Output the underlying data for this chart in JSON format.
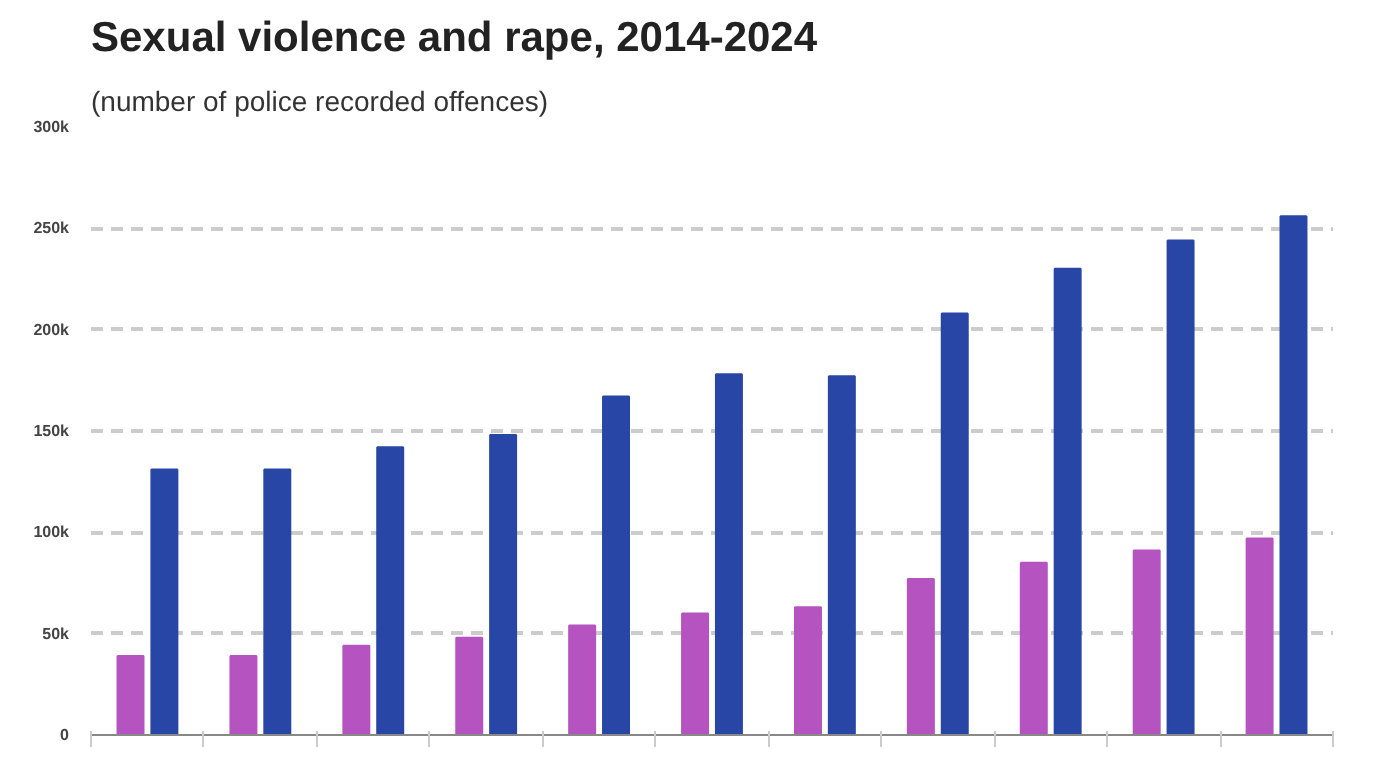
{
  "chart_data": {
    "type": "bar",
    "title": "Sexual violence and rape, 2014-2024",
    "subtitle": "(number of police recorded offences)",
    "categories": [
      null,
      null,
      null,
      null,
      null,
      null,
      null,
      null,
      null,
      null,
      null
    ],
    "series": [
      {
        "color": "#b554c0",
        "values": [
          39000,
          39000,
          44000,
          48000,
          54000,
          60000,
          63000,
          77000,
          85000,
          91000,
          97000
        ]
      },
      {
        "color": "#2846a6",
        "values": [
          131000,
          131000,
          142000,
          148000,
          167000,
          178000,
          177000,
          208000,
          230000,
          244000,
          256000
        ]
      }
    ],
    "ylim": [
      0,
      300000
    ],
    "yticks": [
      {
        "value": 0,
        "label": "0"
      },
      {
        "value": 50000,
        "label": "50k"
      },
      {
        "value": 100000,
        "label": "100k"
      },
      {
        "value": 150000,
        "label": "150k"
      },
      {
        "value": 200000,
        "label": "200k"
      },
      {
        "value": 250000,
        "label": "250k"
      },
      {
        "value": 300000,
        "label": "300k"
      }
    ],
    "grid": "y"
  }
}
